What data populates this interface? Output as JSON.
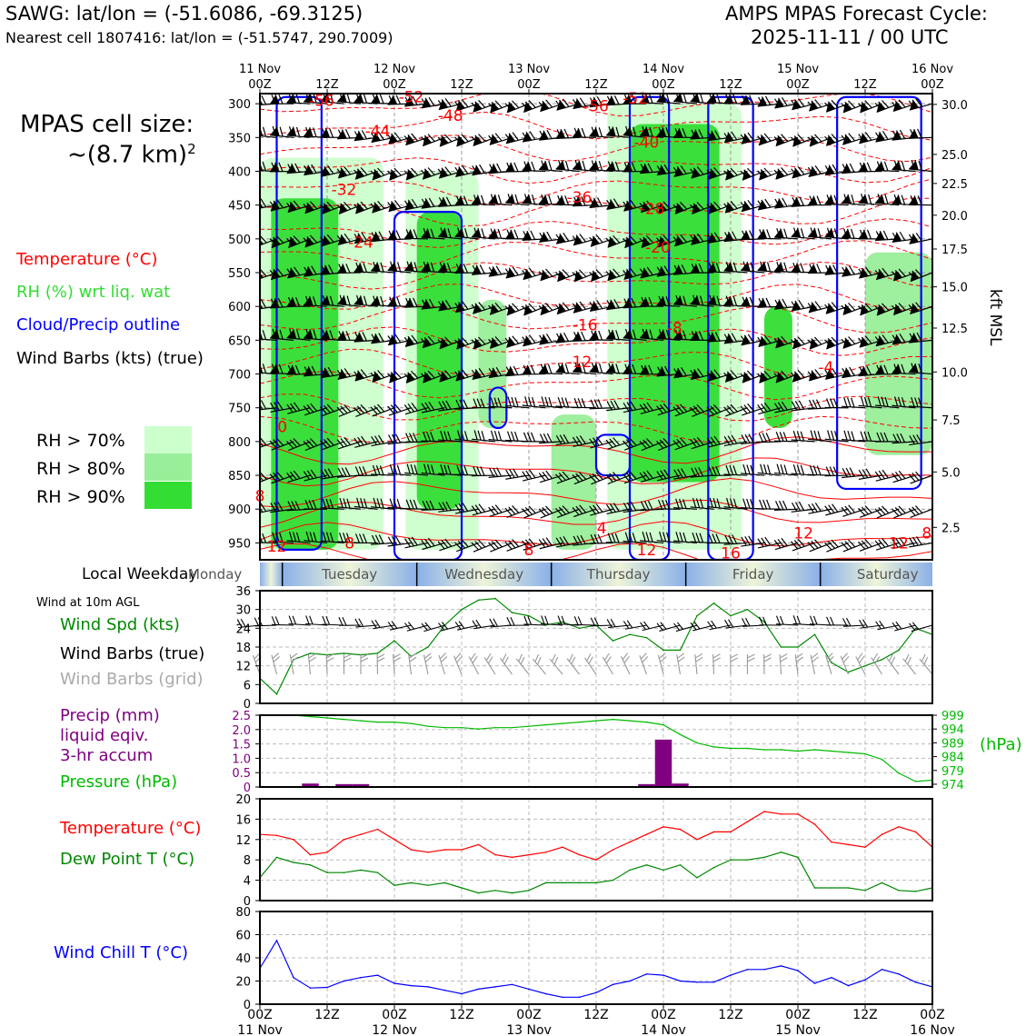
{
  "header": {
    "station": "SAWG: lat/lon = (-51.6086, -69.3125)",
    "nearest": "Nearest cell 1807416: lat/lon = (-51.5747, 290.7009)",
    "cycle_title": "AMPS MPAS Forecast Cycle:",
    "cycle_time": "2025-11-11 / 00 UTC",
    "cell_size_label": "MPAS cell size:",
    "cell_size_value": "~(8.7 km)",
    "cell_size_exp": "2"
  },
  "colors": {
    "temperature": "#ff0000",
    "rh": "#33dd33",
    "cloud": "#0000ff",
    "pressure": "#00aa00",
    "dewpoint": "#008800",
    "precip": "#800080",
    "windchill": "#0000ff",
    "rh70": "#ccffcc",
    "rh80": "#99ee99",
    "rh90": "#33dd33"
  },
  "legend_upper": {
    "temperature": "Temperature (°C)",
    "rh": "RH (%) wrt liq. wat",
    "cloud": "Cloud/Precip outline",
    "wind": "Wind Barbs (kts) (true)",
    "rh70": "RH > 70%",
    "rh80": "RH > 80%",
    "rh90": "RH > 90%"
  },
  "time_axis": {
    "top_labels": [
      {
        "t": 0,
        "l1": "11 Nov",
        "l2": "00Z"
      },
      {
        "t": 12,
        "l1": "",
        "l2": "12Z"
      },
      {
        "t": 24,
        "l1": "12 Nov",
        "l2": "00Z"
      },
      {
        "t": 36,
        "l1": "",
        "l2": "12Z"
      },
      {
        "t": 48,
        "l1": "13 Nov",
        "l2": "00Z"
      },
      {
        "t": 60,
        "l1": "",
        "l2": "12Z"
      },
      {
        "t": 72,
        "l1": "14 Nov",
        "l2": "00Z"
      },
      {
        "t": 84,
        "l1": "",
        "l2": "12Z"
      },
      {
        "t": 96,
        "l1": "15 Nov",
        "l2": "00Z"
      },
      {
        "t": 108,
        "l1": "",
        "l2": "12Z"
      },
      {
        "t": 120,
        "l1": "16 Nov",
        "l2": "00Z"
      }
    ],
    "bottom_labels": [
      {
        "t": 0,
        "l1": "00Z",
        "l2": "11 Nov"
      },
      {
        "t": 12,
        "l1": "12Z",
        "l2": ""
      },
      {
        "t": 24,
        "l1": "00Z",
        "l2": "12 Nov"
      },
      {
        "t": 36,
        "l1": "12Z",
        "l2": ""
      },
      {
        "t": 48,
        "l1": "00Z",
        "l2": "13 Nov"
      },
      {
        "t": 60,
        "l1": "12Z",
        "l2": ""
      },
      {
        "t": 72,
        "l1": "00Z",
        "l2": "14 Nov"
      },
      {
        "t": 84,
        "l1": "12Z",
        "l2": ""
      },
      {
        "t": 96,
        "l1": "00Z",
        "l2": "15 Nov"
      },
      {
        "t": 108,
        "l1": "12Z",
        "l2": ""
      },
      {
        "t": 120,
        "l1": "00Z",
        "l2": "16 Nov"
      }
    ]
  },
  "weekday_bar": {
    "label": "Local Weekday",
    "days": [
      "Monday",
      "Tuesday",
      "Wednesday",
      "Thursday",
      "Friday",
      "Saturday"
    ],
    "boundaries_hours": [
      4,
      28,
      52,
      76,
      100
    ]
  },
  "panel_labels": {
    "wind_title": "Wind at 10m AGL",
    "wind_spd": "Wind Spd (kts)",
    "wind_true": "Wind Barbs (true)",
    "wind_grid": "Wind Barbs (grid)",
    "precip1": "Precip (mm)",
    "precip2": "liquid eqiv.",
    "precip3": "3-hr accum",
    "pressure": "Pressure (hPa)",
    "pressure_unit": "(hPa)",
    "temp": "Temperature (°C)",
    "dewpoint": "Dew Point T (°C)",
    "windchill": "Wind Chill T (°C)",
    "kft_label": "kft MSL"
  },
  "chart_data": [
    {
      "type": "heatmap",
      "name_hint": "time-height cross-section",
      "x_range_hours": [
        0,
        120
      ],
      "y_axis_pressure_hpa": [
        300,
        350,
        400,
        450,
        500,
        550,
        600,
        650,
        700,
        750,
        800,
        850,
        900,
        950
      ],
      "y_range_hpa": [
        285,
        975
      ],
      "right_axis_kft": [
        {
          "kft": "30.0",
          "p": 301
        },
        {
          "kft": "25.0",
          "p": 375
        },
        {
          "kft": "22.5",
          "p": 418
        },
        {
          "kft": "20.0",
          "p": 465
        },
        {
          "kft": "17.5",
          "p": 515
        },
        {
          "kft": "15.0",
          "p": 571
        },
        {
          "kft": "12.5",
          "p": 632
        },
        {
          "kft": "10.0",
          "p": 697
        },
        {
          "kft": "7.5",
          "p": 768
        },
        {
          "kft": "5.0",
          "p": 845
        },
        {
          "kft": "2.5",
          "p": 927
        }
      ],
      "temperature_labels": [
        {
          "t": 11,
          "p": 295,
          "v": "-56"
        },
        {
          "t": 27,
          "p": 290,
          "v": "-52"
        },
        {
          "t": 34,
          "p": 317,
          "v": "-48"
        },
        {
          "t": 21,
          "p": 340,
          "v": "-44"
        },
        {
          "t": 15,
          "p": 427,
          "v": "-32"
        },
        {
          "t": 18,
          "p": 505,
          "v": "-24"
        },
        {
          "t": 60,
          "p": 303,
          "v": "-56"
        },
        {
          "t": 67,
          "p": 292,
          "v": "-52"
        },
        {
          "t": 69,
          "p": 357,
          "v": "-40"
        },
        {
          "t": 57,
          "p": 438,
          "v": "-36"
        },
        {
          "t": 70,
          "p": 455,
          "v": "-28"
        },
        {
          "t": 71,
          "p": 512,
          "v": "-20"
        },
        {
          "t": 58,
          "p": 627,
          "v": "-16"
        },
        {
          "t": 57,
          "p": 682,
          "v": "-12"
        },
        {
          "t": 74,
          "p": 632,
          "v": "-8"
        },
        {
          "t": 101,
          "p": 690,
          "v": "-4"
        },
        {
          "t": 4,
          "p": 778,
          "v": "0"
        },
        {
          "t": 0,
          "p": 880,
          "v": "8"
        },
        {
          "t": 3,
          "p": 955,
          "v": "12"
        },
        {
          "t": 16,
          "p": 950,
          "v": "8"
        },
        {
          "t": 48,
          "p": 960,
          "v": "8"
        },
        {
          "t": 61,
          "p": 928,
          "v": "4"
        },
        {
          "t": 69,
          "p": 960,
          "v": "12"
        },
        {
          "t": 84,
          "p": 965,
          "v": "16"
        },
        {
          "t": 97,
          "p": 935,
          "v": "12"
        },
        {
          "t": 114,
          "p": 950,
          "v": "12"
        },
        {
          "t": 119,
          "p": 935,
          "v": "8"
        }
      ],
      "rh_columns": [
        {
          "t0": 2,
          "t1": 14,
          "p0": 440,
          "p1": 960,
          "level": 90
        },
        {
          "t0": 0,
          "t1": 22,
          "p0": 380,
          "p1": 960,
          "level": 70
        },
        {
          "t0": 28,
          "t1": 36,
          "p0": 460,
          "p1": 900,
          "level": 90
        },
        {
          "t0": 26,
          "t1": 39,
          "p0": 400,
          "p1": 960,
          "level": 70
        },
        {
          "t0": 39,
          "t1": 44,
          "p0": 590,
          "p1": 780,
          "level": 80
        },
        {
          "t0": 52,
          "t1": 60,
          "p0": 760,
          "p1": 960,
          "level": 80
        },
        {
          "t0": 66,
          "t1": 82,
          "p0": 330,
          "p1": 860,
          "level": 90
        },
        {
          "t0": 62,
          "t1": 86,
          "p0": 300,
          "p1": 960,
          "level": 70
        },
        {
          "t0": 90,
          "t1": 95,
          "p0": 600,
          "p1": 780,
          "level": 90
        },
        {
          "t0": 108,
          "t1": 120,
          "p0": 520,
          "p1": 820,
          "level": 80
        }
      ],
      "cloud_outlines": [
        {
          "t0": 3,
          "t1": 11,
          "p0": 290,
          "p1": 960
        },
        {
          "t0": 24,
          "t1": 36,
          "p0": 460,
          "p1": 975
        },
        {
          "t0": 41,
          "t1": 44,
          "p0": 720,
          "p1": 780
        },
        {
          "t0": 60,
          "t1": 66,
          "p0": 790,
          "p1": 850
        },
        {
          "t0": 66,
          "t1": 73,
          "p0": 290,
          "p1": 975
        },
        {
          "t0": 80,
          "t1": 88,
          "p0": 290,
          "p1": 975
        },
        {
          "t0": 103,
          "t1": 118,
          "p0": 290,
          "p1": 870
        }
      ],
      "barb_levels_hpa": [
        300,
        350,
        400,
        450,
        500,
        550,
        600,
        650,
        700,
        750,
        800,
        850,
        900,
        950
      ],
      "barb_interval_hours": 3
    },
    {
      "type": "line",
      "name_hint": "10m wind speed",
      "x_hours": [
        0,
        3,
        6,
        9,
        12,
        15,
        18,
        21,
        24,
        27,
        30,
        33,
        36,
        39,
        42,
        45,
        48,
        51,
        54,
        57,
        60,
        63,
        66,
        69,
        72,
        75,
        78,
        81,
        84,
        87,
        90,
        93,
        96,
        99,
        102,
        105,
        108,
        111,
        114,
        117,
        120
      ],
      "series": [
        {
          "values": [
            8,
            3,
            14,
            16,
            15.5,
            16,
            15.5,
            16,
            20,
            15,
            18,
            25,
            30,
            33,
            33.5,
            29,
            28,
            25,
            26,
            24,
            25,
            20,
            22,
            21,
            17,
            17,
            28,
            32,
            28,
            30,
            26,
            18,
            18,
            22,
            13,
            10,
            12,
            14,
            17,
            24,
            22
          ]
        }
      ],
      "ylim": [
        0,
        36
      ],
      "yticks": [
        0,
        6,
        12,
        18,
        24,
        30,
        36
      ]
    },
    {
      "type": "bar",
      "name_hint": "3-hr precipitation",
      "x_hours": [
        9,
        15,
        18,
        69,
        72,
        75
      ],
      "values": [
        0.12,
        0.1,
        0.1,
        0.1,
        1.65,
        0.12
      ],
      "ylim": [
        0,
        2.5
      ],
      "yticks": [
        "0",
        "0.5",
        "1.0",
        "1.5",
        "2.0",
        "2.5"
      ],
      "pressure_x_hours": [
        0,
        3,
        6,
        9,
        12,
        15,
        18,
        21,
        24,
        27,
        30,
        33,
        36,
        39,
        42,
        45,
        48,
        51,
        54,
        57,
        60,
        63,
        66,
        69,
        72,
        75,
        78,
        81,
        84,
        87,
        90,
        93,
        96,
        99,
        102,
        105,
        108,
        111,
        114,
        117,
        120
      ],
      "pressure_values": [
        999,
        999,
        999,
        998.5,
        998,
        997.5,
        997,
        996.5,
        996.5,
        996,
        995,
        994.5,
        994.5,
        994,
        994.5,
        994.5,
        995,
        995.5,
        996,
        996.5,
        997,
        997.5,
        997,
        996.5,
        995.5,
        992,
        989,
        987.5,
        987,
        987,
        986.5,
        986.5,
        986,
        986.5,
        986,
        985.5,
        985,
        983,
        978,
        975,
        975.5
      ],
      "pressure_ylim": [
        973,
        999
      ],
      "pressure_ticks": [
        "999",
        "994",
        "989",
        "984",
        "979",
        "974"
      ]
    },
    {
      "type": "line",
      "name_hint": "temperature and dew point",
      "x_hours": [
        0,
        3,
        6,
        9,
        12,
        15,
        18,
        21,
        24,
        27,
        30,
        33,
        36,
        39,
        42,
        45,
        48,
        51,
        54,
        57,
        60,
        63,
        66,
        69,
        72,
        75,
        78,
        81,
        84,
        87,
        90,
        93,
        96,
        99,
        102,
        105,
        108,
        111,
        114,
        117,
        120
      ],
      "series": [
        {
          "name": "Temperature (°C)",
          "values": [
            13,
            12.8,
            12,
            9,
            9.5,
            12,
            13,
            14,
            12,
            10,
            9.5,
            10,
            10,
            11,
            9,
            8.5,
            9,
            9.5,
            10.5,
            9,
            8,
            10,
            11.5,
            13,
            14.5,
            14,
            12,
            13.5,
            13.5,
            15.5,
            17.5,
            17,
            17,
            15,
            11.5,
            11,
            10.5,
            13,
            14.5,
            13.5,
            10.5
          ]
        },
        {
          "name": "Dew Point T (°C)",
          "values": [
            4.5,
            8.5,
            7.5,
            7,
            5.5,
            5.5,
            6,
            5.5,
            3,
            3.5,
            3,
            3.5,
            2.5,
            1.5,
            2,
            1.5,
            2,
            3.5,
            3.5,
            3.5,
            3.5,
            4,
            6,
            7,
            6,
            7,
            4.5,
            6.5,
            8,
            8,
            8.5,
            9.5,
            8.5,
            2.5,
            2.5,
            2.5,
            2,
            3.5,
            2,
            1.8,
            2.5
          ]
        }
      ],
      "ylim": [
        0,
        20
      ],
      "yticks": [
        0,
        4,
        8,
        12,
        16,
        20
      ]
    },
    {
      "type": "line",
      "name_hint": "wind chill",
      "x_hours": [
        0,
        3,
        6,
        9,
        12,
        15,
        18,
        21,
        24,
        27,
        30,
        33,
        36,
        39,
        42,
        45,
        48,
        51,
        54,
        57,
        60,
        63,
        66,
        69,
        72,
        75,
        78,
        81,
        84,
        87,
        90,
        93,
        96,
        99,
        102,
        105,
        108,
        111,
        114,
        117,
        120
      ],
      "series": [
        {
          "name": "Wind Chill T (°C)",
          "values": [
            31,
            55,
            23,
            14,
            14.5,
            20,
            23,
            25,
            18,
            16,
            15,
            12,
            9,
            13,
            15,
            17,
            13,
            9,
            6,
            6,
            10,
            17,
            20,
            26,
            25,
            20,
            19,
            19,
            25,
            30,
            30,
            33,
            29,
            18,
            23,
            16,
            21,
            30,
            26,
            19,
            15
          ]
        }
      ],
      "ylim": [
        0,
        80
      ],
      "yticks": [
        0,
        20,
        40,
        60,
        80
      ]
    }
  ]
}
